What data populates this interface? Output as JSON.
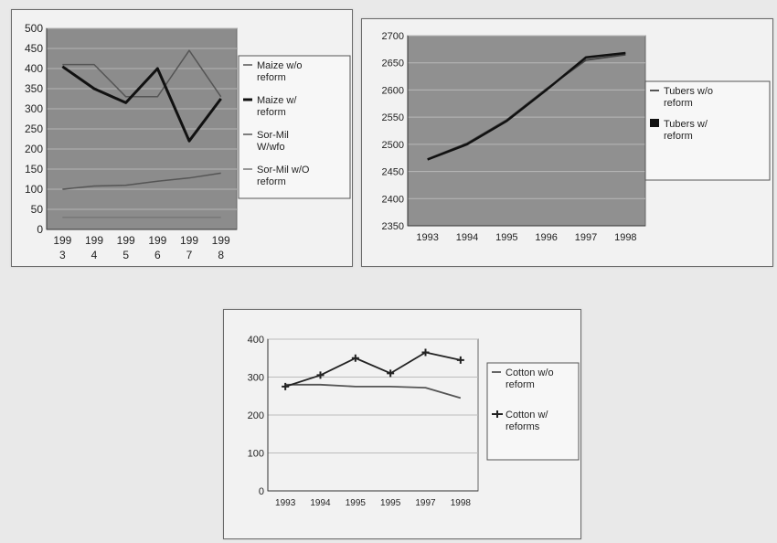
{
  "chart_data": [
    {
      "type": "line",
      "categories": [
        "199\n3",
        "199\n4",
        "199\n5",
        "199\n6",
        "199\n7",
        "199\n8"
      ],
      "ylim": [
        0,
        500
      ],
      "yticks": [
        0,
        50,
        100,
        150,
        200,
        250,
        300,
        350,
        400,
        450,
        500
      ],
      "grid": true,
      "legend_position": "right",
      "series": [
        {
          "name": "Maize w/o reform",
          "values": [
            410,
            410,
            330,
            330,
            445,
            330
          ],
          "color": "#555555"
        },
        {
          "name": "Maize w/ reform",
          "values": [
            405,
            350,
            315,
            400,
            220,
            325
          ],
          "color": "#111111"
        },
        {
          "name": "Sor-Mil W/wfo",
          "values": [
            100,
            108,
            110,
            120,
            128,
            140
          ],
          "color": "#555555"
        },
        {
          "name": "Sor-Mil w/O reform",
          "values": [
            30,
            30,
            30,
            30,
            30,
            30
          ],
          "color": "#777777"
        }
      ]
    },
    {
      "type": "line",
      "categories": [
        "1993",
        "1994",
        "1995",
        "1996",
        "1997",
        "1998"
      ],
      "ylim": [
        2350,
        2700
      ],
      "yticks": [
        2350,
        2400,
        2450,
        2500,
        2550,
        2600,
        2650,
        2700
      ],
      "grid": true,
      "legend_position": "right",
      "series": [
        {
          "name": "Tubers w/o reform",
          "values": [
            2473,
            2502,
            2545,
            2602,
            2655,
            2665
          ],
          "color": "#444444"
        },
        {
          "name": "Tubers w/ reform",
          "values": [
            2472,
            2500,
            2543,
            2600,
            2660,
            2668
          ],
          "color": "#111111"
        }
      ]
    },
    {
      "type": "line",
      "categories": [
        "1993",
        "1994",
        "1995",
        "1995",
        "1997",
        "1998"
      ],
      "ylim": [
        0,
        400
      ],
      "yticks": [
        0,
        100,
        200,
        300,
        400
      ],
      "grid": true,
      "legend_position": "right",
      "series": [
        {
          "name": "Cotton w/o reform",
          "values": [
            280,
            280,
            275,
            275,
            272,
            245
          ],
          "color": "#555555"
        },
        {
          "name": "Cotton w/ reforms",
          "values": [
            275,
            305,
            350,
            310,
            365,
            345
          ],
          "color": "#222222"
        }
      ]
    }
  ]
}
